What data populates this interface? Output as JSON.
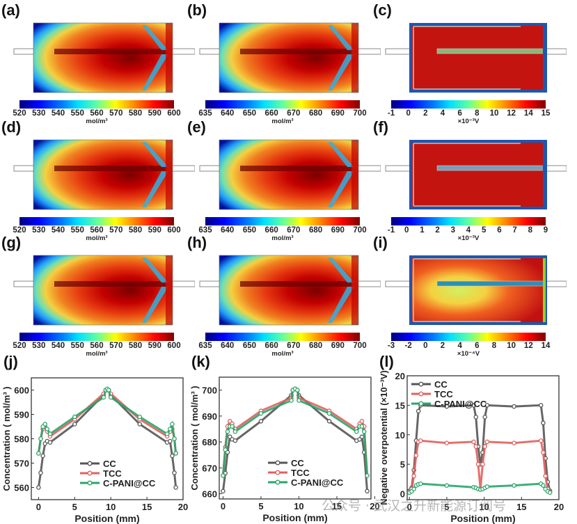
{
  "colors": {
    "CC": "#555555",
    "TCC": "#e0605e",
    "C-PANI@CC": "#2aa56a"
  },
  "maps": [
    {
      "label": "(a)",
      "type": "concentration-cell",
      "colorbar": {
        "ticks": [
          "520",
          "530",
          "540",
          "550",
          "560",
          "570",
          "580",
          "590",
          "600"
        ],
        "unit": "mol/m³"
      }
    },
    {
      "label": "(b)",
      "type": "concentration-cell",
      "colorbar": {
        "ticks": [
          "635",
          "640",
          "650",
          "660",
          "670",
          "680",
          "690",
          "700"
        ],
        "unit": "mol/m³"
      }
    },
    {
      "label": "(c)",
      "type": "potential-cell-green",
      "colorbar": {
        "ticks": [
          "-1",
          "0",
          "2",
          "4",
          "6",
          "8",
          "10",
          "12",
          "14",
          "15"
        ],
        "unit": "×10⁻³V"
      }
    },
    {
      "label": "(d)",
      "type": "concentration-cell",
      "colorbar": {
        "ticks": [
          "520",
          "530",
          "540",
          "550",
          "560",
          "570",
          "580",
          "590",
          "600"
        ],
        "unit": "mol/m³"
      }
    },
    {
      "label": "(e)",
      "type": "concentration-cell",
      "colorbar": {
        "ticks": [
          "635",
          "640",
          "650",
          "660",
          "670",
          "680",
          "690",
          "700"
        ],
        "unit": "mol/m³"
      }
    },
    {
      "label": "(f)",
      "type": "potential-cell-blue",
      "colorbar": {
        "ticks": [
          "-1",
          "0",
          "1",
          "2",
          "3",
          "4",
          "5",
          "6",
          "7",
          "8",
          "9"
        ],
        "unit": "×10⁻³V"
      }
    },
    {
      "label": "(g)",
      "type": "concentration-cell",
      "colorbar": {
        "ticks": [
          "520",
          "530",
          "540",
          "550",
          "560",
          "570",
          "580",
          "590",
          "600"
        ],
        "unit": "mol/m³"
      }
    },
    {
      "label": "(h)",
      "type": "concentration-cell",
      "colorbar": {
        "ticks": [
          "635",
          "640",
          "650",
          "660",
          "670",
          "680",
          "690",
          "700"
        ],
        "unit": "mol/m³"
      }
    },
    {
      "label": "(i)",
      "type": "potential-cell-gradient",
      "colorbar": {
        "ticks": [
          "-3",
          "-2",
          "0",
          "2",
          "4",
          "6",
          "8",
          "10",
          "12",
          "14"
        ],
        "unit": "×10⁻⁴V"
      }
    }
  ],
  "chart_data": [
    {
      "label": "(j)",
      "type": "line",
      "title": "",
      "xlabel": "Position  (mm)",
      "ylabel": "Concentration  ( mol/m³ )",
      "xlim": [
        -1,
        20
      ],
      "ylim": [
        555,
        605
      ],
      "xticks": [
        "0",
        "5",
        "10",
        "15",
        "20"
      ],
      "yticks": [
        "560",
        "570",
        "580",
        "590",
        "600"
      ],
      "legend": "bottom-center",
      "series": [
        {
          "name": "CC",
          "x": [
            0,
            0.3,
            0.6,
            0.9,
            1.2,
            1.6,
            5,
            9,
            9.3,
            9.5,
            9.7,
            10,
            14,
            17.8,
            18.2,
            18.5,
            18.8,
            19
          ],
          "y": [
            560,
            566,
            573,
            578,
            579,
            578.5,
            586,
            598,
            600,
            600,
            600,
            598,
            586,
            578.5,
            579,
            573,
            566,
            560
          ]
        },
        {
          "name": "TCC",
          "x": [
            0,
            0.3,
            0.6,
            0.9,
            1.2,
            1.6,
            5,
            9,
            9.3,
            9.5,
            9.7,
            10,
            14,
            17.8,
            18.2,
            18.5,
            18.8,
            19
          ],
          "y": [
            574,
            580,
            584,
            585,
            583,
            581,
            588,
            598.5,
            600,
            600,
            600,
            598.5,
            588,
            581,
            583,
            584,
            580,
            574
          ]
        },
        {
          "name": "C-PANI@CC",
          "x": [
            0,
            0.3,
            0.6,
            0.9,
            1.2,
            1.6,
            5,
            9,
            9.3,
            9.5,
            9.7,
            10,
            14,
            17.8,
            18.2,
            18.5,
            18.8,
            19
          ],
          "y": [
            574,
            580,
            585,
            586,
            584,
            582,
            589,
            597,
            600,
            600.5,
            600,
            597,
            589,
            582,
            584,
            586,
            580,
            574
          ]
        }
      ]
    },
    {
      "label": "(k)",
      "type": "line",
      "title": "",
      "xlabel": "Position  (mm)",
      "ylabel": "Concentration  ( mol/m³ )",
      "xlim": [
        -0.5,
        19.5
      ],
      "ylim": [
        658,
        705
      ],
      "xticks": [
        "0",
        "5",
        "10",
        "15",
        "20"
      ],
      "yticks": [
        "660",
        "670",
        "680",
        "690",
        "700"
      ],
      "legend": "bottom-center",
      "series": [
        {
          "name": "CC",
          "x": [
            0,
            0.3,
            0.6,
            0.9,
            1.2,
            1.6,
            5,
            9,
            9.2,
            9.5,
            9.8,
            10,
            14,
            17.6,
            18,
            18.3,
            18.6,
            19
          ],
          "y": [
            661,
            668,
            676,
            682,
            681,
            680.5,
            688,
            698,
            700,
            700.5,
            700,
            698,
            688,
            680.5,
            681,
            682,
            676,
            661
          ]
        },
        {
          "name": "TCC",
          "x": [
            0,
            0.3,
            0.6,
            0.9,
            1.2,
            1.6,
            5,
            9,
            9.2,
            9.5,
            9.8,
            10,
            14,
            17.6,
            18,
            18.3,
            18.6,
            19
          ],
          "y": [
            667,
            678,
            686,
            688,
            687,
            685,
            692,
            697,
            700,
            700.5,
            700,
            697,
            692,
            685,
            687,
            688,
            686,
            667
          ]
        },
        {
          "name": "C-PANI@CC",
          "x": [
            0,
            0.3,
            0.6,
            0.9,
            1.2,
            1.6,
            5,
            9,
            9.2,
            9.5,
            9.8,
            10,
            14,
            17.6,
            18,
            18.3,
            18.6,
            19
          ],
          "y": [
            667,
            677,
            684,
            686,
            686,
            684,
            691,
            696,
            700,
            700.5,
            700,
            696,
            691,
            684,
            686,
            686,
            684,
            667
          ]
        }
      ]
    },
    {
      "label": "(l)",
      "type": "line",
      "title": "",
      "xlabel": "Position  (mm)",
      "ylabel": "Negative overpotential  (×10⁻³V)",
      "xlim": [
        -0.3,
        20
      ],
      "ylim": [
        -1,
        20
      ],
      "xticks": [
        "0",
        "5",
        "10",
        "15",
        "20"
      ],
      "yticks": [
        "0",
        "5",
        "10",
        "15",
        "20"
      ],
      "legend": "top-left",
      "series": [
        {
          "name": "CC",
          "x": [
            0,
            0.3,
            0.6,
            0.9,
            1.2,
            1.5,
            5,
            8.6,
            8.9,
            9.2,
            9.5,
            9.8,
            10.1,
            10.4,
            14,
            17.6,
            17.9,
            18.2,
            18.5,
            18.8
          ],
          "y": [
            0.5,
            1,
            4,
            9,
            14,
            15,
            14.8,
            15,
            13,
            8,
            5,
            7,
            13,
            15,
            14.8,
            15,
            12,
            6,
            2,
            0.5
          ]
        },
        {
          "name": "TCC",
          "x": [
            0,
            0.3,
            0.6,
            0.9,
            1.2,
            1.5,
            5,
            8.6,
            8.9,
            9.2,
            9.5,
            9.8,
            10.1,
            10.4,
            14,
            17.6,
            17.9,
            18.2,
            18.5,
            18.8
          ],
          "y": [
            0.3,
            0.8,
            3,
            6.5,
            8.8,
            9,
            8.6,
            8.8,
            8,
            5,
            0.8,
            5,
            8,
            8.8,
            8.6,
            9,
            7,
            3,
            0.8,
            0.3
          ]
        },
        {
          "name": "C-PANI@CC",
          "x": [
            0,
            0.3,
            0.6,
            0.9,
            1.2,
            1.5,
            5,
            8.6,
            8.9,
            9.2,
            9.5,
            9.8,
            10.1,
            10.4,
            14,
            17.6,
            17.9,
            18.2,
            18.5,
            18.8
          ],
          "y": [
            0.2,
            0.4,
            0.8,
            1.4,
            1.6,
            1.7,
            1.4,
            1.1,
            1,
            0.8,
            0.7,
            0.8,
            1,
            1.2,
            1.4,
            1.7,
            1.4,
            0.8,
            0.4,
            0.2
          ]
        }
      ]
    }
  ],
  "watermark": {
    "text": "公众号 · 武汉之升新能源订阅号"
  }
}
